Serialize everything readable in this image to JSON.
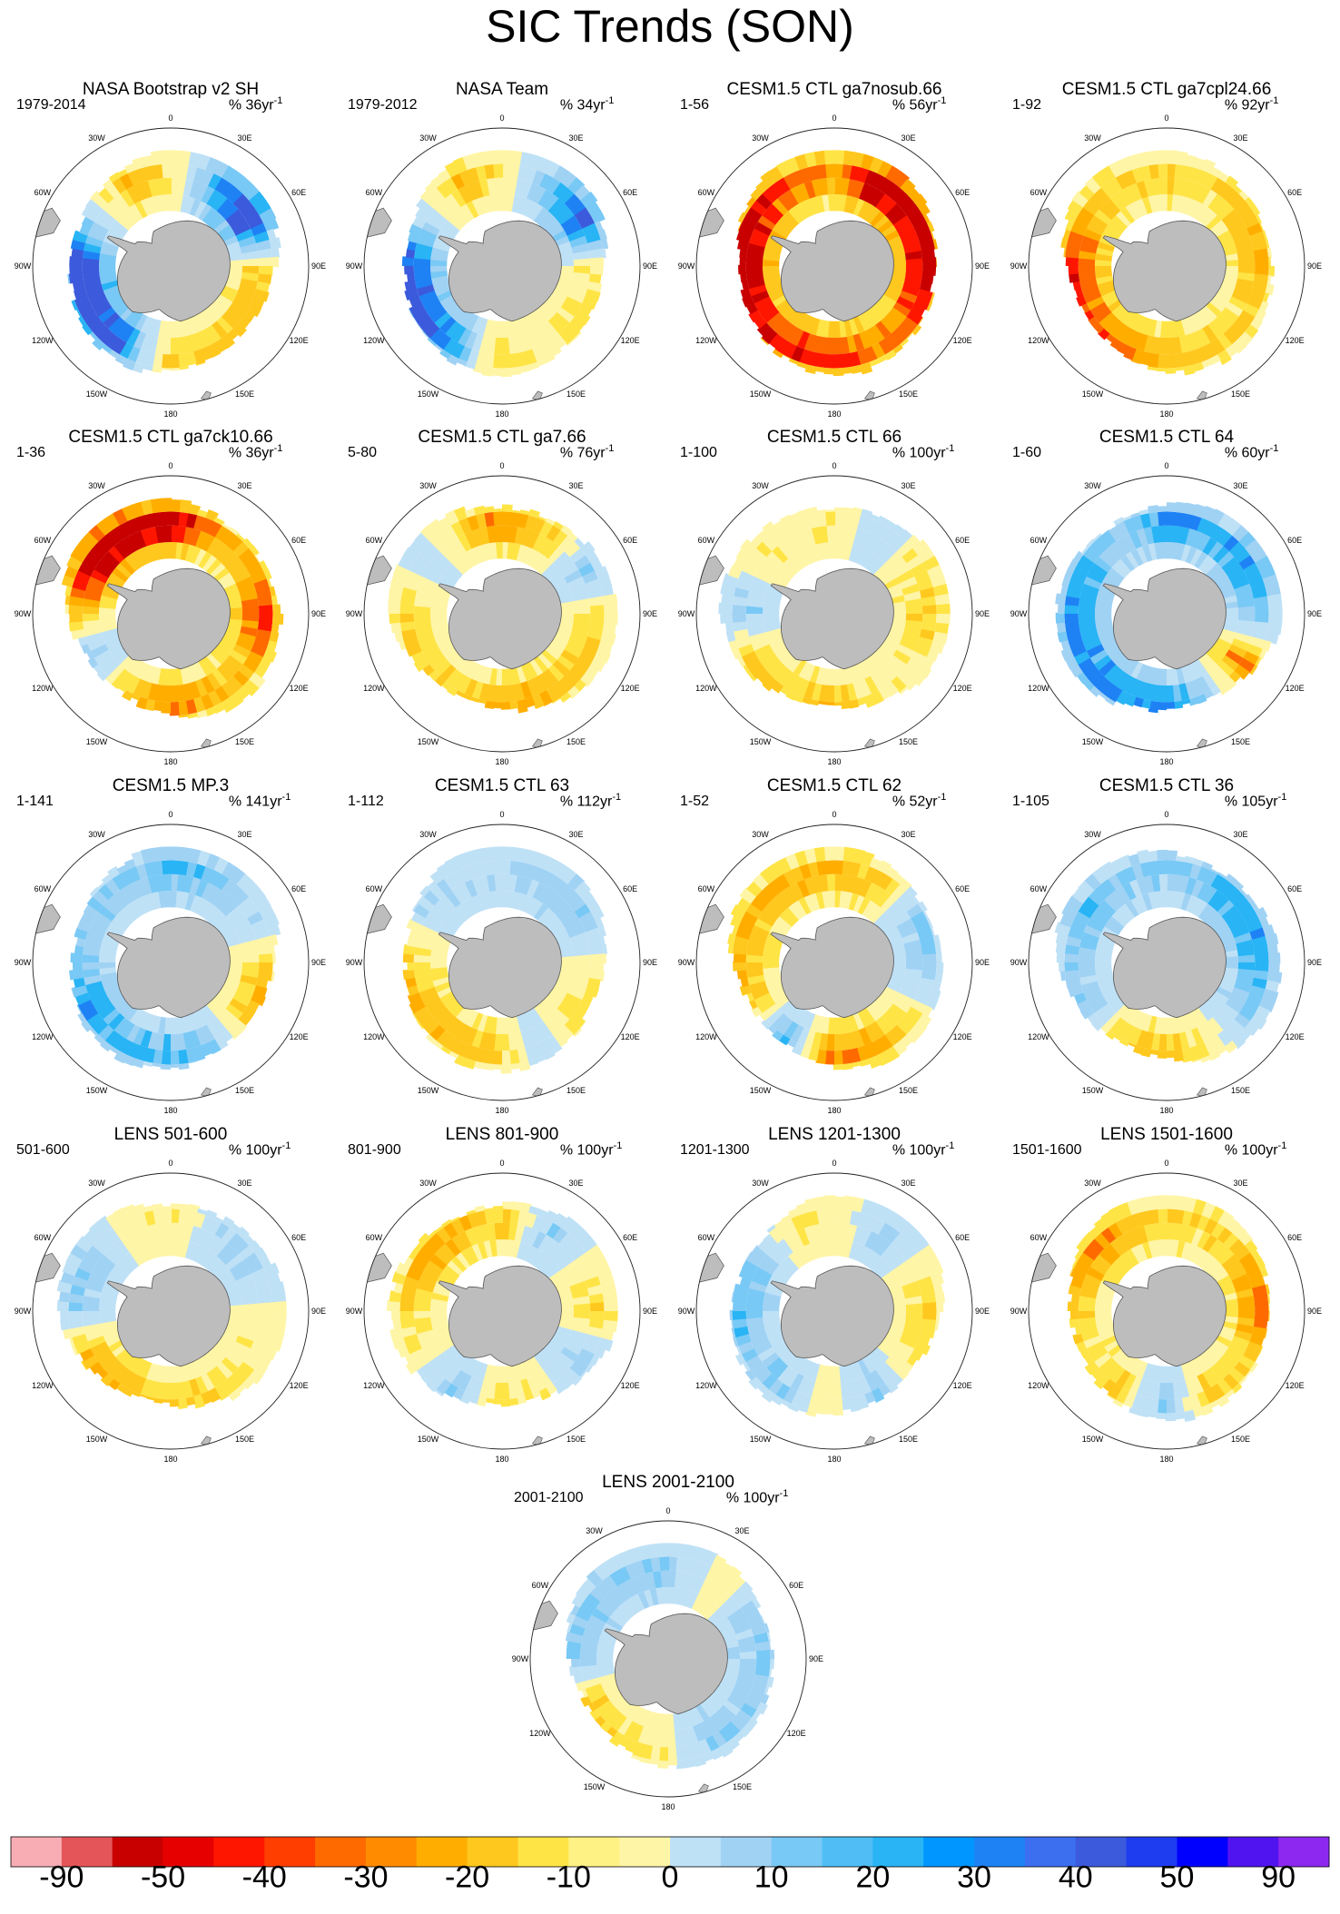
{
  "figure_title": "SIC Trends (SON)",
  "lon_labels": [
    "0",
    "30E",
    "60E",
    "90E",
    "120E",
    "150E",
    "180",
    "150W",
    "120W",
    "90W",
    "60W",
    "30W"
  ],
  "chart_data": {
    "type": "polar contour maps (filled), 17 panels",
    "quantity": "Sea ice concentration trend",
    "season": "SON",
    "colorbar": {
      "ticks": [
        -90,
        -50,
        -40,
        -30,
        -20,
        -10,
        0,
        10,
        20,
        30,
        40,
        50,
        90
      ],
      "colors": [
        "#f8adb4",
        "#e45559",
        "#c80000",
        "#e60000",
        "#ff1600",
        "#ff3e00",
        "#ff6a00",
        "#ff8c00",
        "#ffae00",
        "#ffc81e",
        "#ffe446",
        "#fff284",
        "#fff5a6",
        "#bfe1f6",
        "#a0d2f4",
        "#78c9f5",
        "#50bef5",
        "#28b4f5",
        "#0096ff",
        "#1e82f5",
        "#3c6ef0",
        "#3c5adc",
        "#1e3cf0",
        "#0000ff",
        "#5014f0",
        "#8c28f0"
      ]
    },
    "panels": [
      {
        "title": "NASA Bootstrap v2 SH",
        "period": "1979-2014",
        "units": "% 36yr",
        "sup": "-1",
        "pattern": [
          -1,
          4,
          6,
          -2,
          -3,
          -2,
          -2,
          5,
          6,
          6,
          1,
          -3
        ],
        "seed": 3
      },
      {
        "title": "NASA Team",
        "period": "1979-2012",
        "units": "% 34yr",
        "sup": "-1",
        "pattern": [
          -1,
          3,
          5,
          -1,
          -2,
          -1,
          -2,
          4,
          5,
          5,
          1,
          -3
        ],
        "seed": 5
      },
      {
        "title": "CESM1.5 CTL ga7nosub.66",
        "period": "1-56",
        "units": "% 56yr",
        "sup": "-1",
        "pattern": [
          -4,
          -7,
          -6,
          -6,
          -5,
          -4,
          -5,
          -5,
          -6,
          -7,
          -6,
          -4
        ],
        "seed": 7
      },
      {
        "title": "CESM1.5 CTL ga7cpl24.66",
        "period": "1-92",
        "units": "% 92yr",
        "sup": "-1",
        "pattern": [
          -2,
          -2,
          -3,
          -3,
          -2,
          -2,
          -3,
          -4,
          -5,
          -5,
          -3,
          -2
        ],
        "seed": 11
      },
      {
        "title": "CESM1.5 CTL ga7ck10.66",
        "period": "1-36",
        "units": "% 36yr",
        "sup": "-1",
        "pattern": [
          -6,
          -3,
          -3,
          -5,
          -3,
          -3,
          -4,
          -2,
          2,
          -3,
          -7,
          -7
        ],
        "seed": 13
      },
      {
        "title": "CESM1.5 CTL ga7.66",
        "period": "5-80",
        "units": "% 76yr",
        "sup": "-1",
        "pattern": [
          -4,
          -2,
          2,
          -2,
          -2,
          -3,
          -3,
          -2,
          -2,
          -2,
          1,
          -2
        ],
        "seed": 17
      },
      {
        "title": "CESM1.5 CTL 66",
        "period": "1-100",
        "units": "% 100yr",
        "sup": "-1",
        "pattern": [
          -1,
          1,
          -2,
          -2,
          -1,
          -1,
          -3,
          -2,
          -2,
          2,
          -1,
          -1
        ],
        "seed": 19
      },
      {
        "title": "CESM1.5 CTL 64",
        "period": "1-60",
        "units": "% 60yr",
        "sup": "-1",
        "pattern": [
          4,
          3,
          4,
          2,
          -4,
          2,
          4,
          4,
          4,
          4,
          3,
          2
        ],
        "seed": 23
      },
      {
        "title": "CESM1.5 MP.3",
        "period": "1-141",
        "units": "% 141yr",
        "sup": "-1",
        "pattern": [
          3,
          2,
          1,
          -2,
          -3,
          2,
          3,
          3,
          4,
          2,
          2,
          2
        ],
        "seed": 29
      },
      {
        "title": "CESM1.5 CTL 63",
        "period": "1-112",
        "units": "% 112yr",
        "sup": "-1",
        "pattern": [
          1,
          2,
          2,
          -1,
          -2,
          1,
          -2,
          -3,
          -3,
          -2,
          1,
          1
        ],
        "seed": 31
      },
      {
        "title": "CESM1.5 CTL 62",
        "period": "1-52",
        "units": "% 52yr",
        "sup": "-1",
        "pattern": [
          -3,
          -2,
          2,
          2,
          -1,
          -3,
          -4,
          3,
          -2,
          -3,
          -3,
          -3
        ],
        "seed": 37
      },
      {
        "title": "CESM1.5 CTL 36",
        "period": "1-105",
        "units": "% 105yr",
        "sup": "-1",
        "pattern": [
          2,
          3,
          4,
          3,
          2,
          -1,
          -3,
          -2,
          2,
          2,
          3,
          2
        ],
        "seed": 41
      },
      {
        "title": "LENS 501-600",
        "period": "501-600",
        "units": "% 100yr",
        "sup": "-1",
        "pattern": [
          -1,
          1,
          2,
          -1,
          -1,
          -2,
          -2,
          -3,
          -3,
          2,
          2,
          -1
        ],
        "seed": 43
      },
      {
        "title": "LENS 801-900",
        "period": "801-900",
        "units": "% 100yr",
        "sup": "-1",
        "pattern": [
          -2,
          2,
          -1,
          -2,
          2,
          -1,
          -2,
          2,
          -1,
          -2,
          -3,
          -3
        ],
        "seed": 47
      },
      {
        "title": "LENS 1201-1300",
        "period": "1201-1300",
        "units": "% 100yr",
        "sup": "-1",
        "pattern": [
          -1,
          2,
          -1,
          -2,
          -1,
          2,
          -1,
          2,
          2,
          3,
          2,
          -1
        ],
        "seed": 53
      },
      {
        "title": "LENS 1501-1600",
        "period": "1501-1600",
        "units": "% 100yr",
        "sup": "-1",
        "pattern": [
          -2,
          -2,
          -3,
          -4,
          -2,
          -2,
          2,
          -2,
          -2,
          -2,
          -4,
          -3
        ],
        "seed": 59
      },
      {
        "title": "LENS 2001-2100",
        "period": "2001-2100",
        "units": "% 100yr",
        "sup": "-1",
        "pattern": [
          2,
          -1,
          2,
          2,
          2,
          2,
          -1,
          -2,
          -2,
          2,
          2,
          2
        ],
        "seed": 61
      }
    ]
  }
}
